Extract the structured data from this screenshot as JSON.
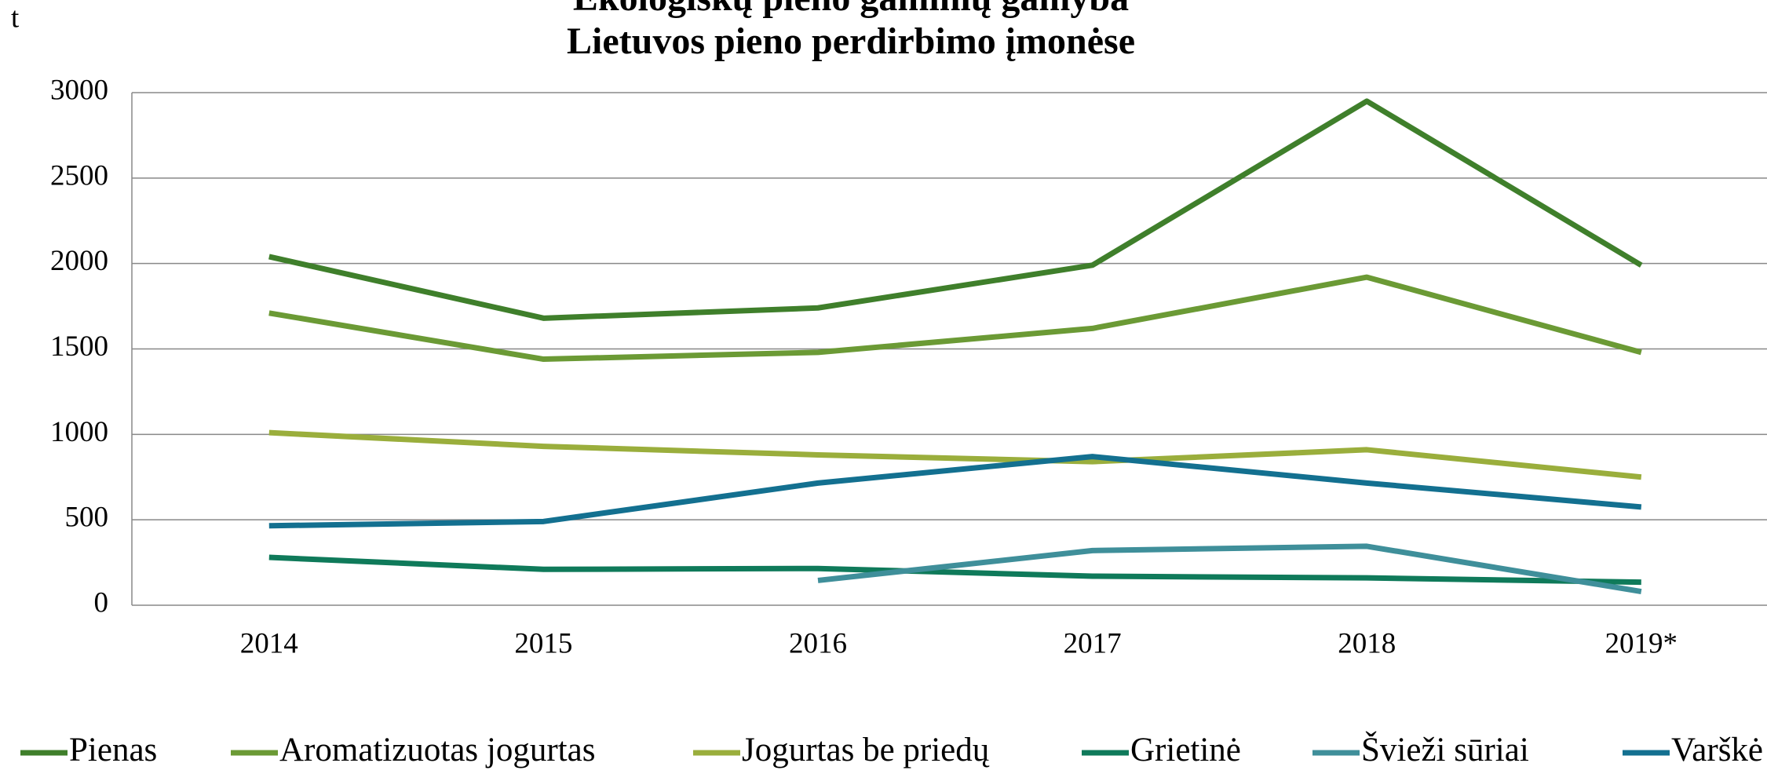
{
  "chart_data": {
    "type": "line",
    "title": [
      "Ekologiškų pieno gaminių gamyba",
      "Lietuvos pieno perdirbimo įmonėse"
    ],
    "ylabel": "t",
    "categories": [
      "2014",
      "2015",
      "2016",
      "2017",
      "2018",
      "2019*"
    ],
    "series": [
      {
        "name": "Pienas",
        "color": "#3f7f2b",
        "values": [
          2040,
          1680,
          1740,
          1990,
          2950,
          1990
        ]
      },
      {
        "name": "Aromatizuotas jogurtas",
        "color": "#6b9a35",
        "values": [
          1710,
          1440,
          1480,
          1620,
          1920,
          1480
        ]
      },
      {
        "name": "Jogurtas be priedų",
        "color": "#9aae3c",
        "values": [
          1010,
          930,
          880,
          840,
          910,
          750
        ]
      },
      {
        "name": "Grietinė",
        "color": "#0f7a5a",
        "values": [
          280,
          210,
          215,
          170,
          160,
          135
        ]
      },
      {
        "name": "Švieži sūriai",
        "color": "#3f8f9a",
        "values": [
          null,
          null,
          145,
          320,
          345,
          80
        ]
      },
      {
        "name": "Varškė",
        "color": "#137090",
        "values": [
          465,
          490,
          715,
          870,
          715,
          575
        ]
      }
    ],
    "ylim": [
      0,
      3000
    ],
    "yticks": [
      0,
      500,
      1000,
      1500,
      2000,
      2500,
      3000
    ],
    "grid": true,
    "legend": "bottom"
  }
}
